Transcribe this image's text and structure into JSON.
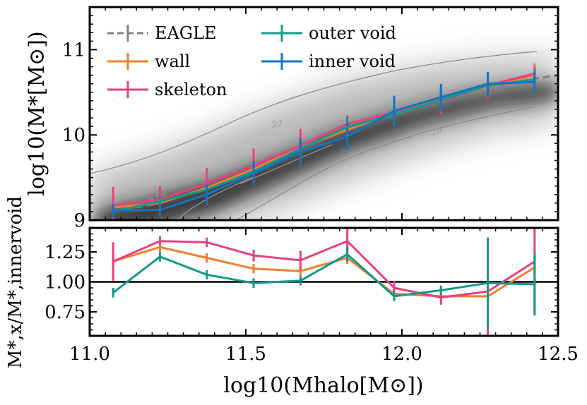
{
  "chart_data": [
    {
      "type": "line",
      "panel": "top",
      "xlim": [
        11.0,
        12.5
      ],
      "ylim": [
        9.0,
        11.5
      ],
      "ylabel": "log10(M*[M⊙])",
      "ytick_labels": [
        "9",
        "10",
        "11"
      ],
      "yticks": [
        9,
        10,
        11
      ],
      "background": "grayscale 2D density with contours",
      "contour_labels": [
        "2σ",
        "2σ",
        "0.5σ"
      ],
      "legend_position": "top-left",
      "legend_columns": 2,
      "x": [
        11.075,
        11.225,
        11.375,
        11.525,
        11.675,
        11.825,
        11.975,
        12.125,
        12.275,
        12.425
      ],
      "series": [
        {
          "name": "EAGLE",
          "color": "#808080",
          "dash": true,
          "x": [
            11.075,
            11.225,
            11.375,
            11.525,
            11.675,
            11.825,
            11.975,
            12.125,
            12.275,
            12.425,
            12.5
          ],
          "values": [
            9.1,
            9.2,
            9.38,
            9.6,
            9.85,
            10.08,
            10.26,
            10.42,
            10.56,
            10.66,
            10.7
          ],
          "errors": [
            0.03,
            0.03,
            0.03,
            0.03,
            0.03,
            0.03,
            0.04,
            0.05,
            0.06,
            0.08,
            0.0
          ]
        },
        {
          "name": "wall",
          "color": "#F07F2F",
          "values": [
            9.15,
            9.2,
            9.38,
            9.6,
            9.85,
            10.06,
            10.26,
            10.42,
            10.57,
            10.7
          ],
          "errors": [
            0.05,
            0.05,
            0.05,
            0.05,
            0.06,
            0.07,
            0.08,
            0.1,
            0.12,
            0.14
          ]
        },
        {
          "name": "skeleton",
          "color": "#EA3E84",
          "values": [
            9.17,
            9.24,
            9.43,
            9.64,
            9.87,
            10.13,
            10.26,
            10.4,
            10.58,
            10.72
          ],
          "errors": [
            0.22,
            0.16,
            0.18,
            0.2,
            0.2,
            0.1,
            0.14,
            0.16,
            0.15,
            0.08
          ]
        },
        {
          "name": "outer void",
          "color": "#13998A",
          "values": [
            9.1,
            9.22,
            9.36,
            9.57,
            9.84,
            10.09,
            10.24,
            10.41,
            10.58,
            10.65
          ],
          "errors": [
            0.07,
            0.06,
            0.06,
            0.07,
            0.08,
            0.12,
            0.12,
            0.12,
            0.13,
            0.12
          ]
        },
        {
          "name": "inner void",
          "color": "#1573C0",
          "values": [
            9.11,
            9.12,
            9.3,
            9.55,
            9.8,
            9.98,
            10.28,
            10.44,
            10.6,
            10.62
          ],
          "errors": [
            0.08,
            0.08,
            0.12,
            0.14,
            0.16,
            0.16,
            0.18,
            0.16,
            0.14,
            0.12
          ]
        }
      ]
    },
    {
      "type": "line",
      "panel": "bottom",
      "xlim": [
        11.0,
        12.5
      ],
      "ylim": [
        0.55,
        1.45
      ],
      "xlabel": "log10(Mhalo[M⊙])",
      "ylabel": "M*,x/M*,innervoid",
      "xtick_labels": [
        "11.0",
        "11.5",
        "12.0",
        "12.5"
      ],
      "xticks": [
        11.0,
        11.5,
        12.0,
        12.5
      ],
      "ytick_labels": [
        "0.75",
        "1.00",
        "1.25"
      ],
      "yticks": [
        0.75,
        1.0,
        1.25
      ],
      "reference_line": 1.0,
      "x": [
        11.075,
        11.225,
        11.375,
        11.525,
        11.675,
        11.825,
        11.975,
        12.125,
        12.275,
        12.425
      ],
      "series": [
        {
          "name": "wall",
          "color": "#F07F2F",
          "values": [
            1.17,
            1.29,
            1.2,
            1.11,
            1.09,
            1.2,
            0.9,
            0.88,
            0.88,
            1.12
          ],
          "errors": [
            0.04,
            0.04,
            0.04,
            0.04,
            0.04,
            0.05,
            0.05,
            0.05,
            0.05,
            0.06
          ]
        },
        {
          "name": "skeleton",
          "color": "#EA3E84",
          "values": [
            1.17,
            1.34,
            1.33,
            1.22,
            1.18,
            1.34,
            0.95,
            0.87,
            0.92,
            1.17
          ],
          "errors": [
            0.16,
            0.04,
            0.04,
            0.05,
            0.08,
            0.12,
            0.06,
            0.06,
            0.42,
            0.44
          ]
        },
        {
          "name": "outer void",
          "color": "#13998A",
          "values": [
            0.91,
            1.21,
            1.06,
            0.99,
            1.01,
            1.23,
            0.88,
            0.93,
            0.99,
            0.98
          ],
          "errors": [
            0.04,
            0.04,
            0.04,
            0.04,
            0.04,
            0.06,
            0.04,
            0.04,
            0.38,
            0.26
          ]
        }
      ]
    }
  ]
}
